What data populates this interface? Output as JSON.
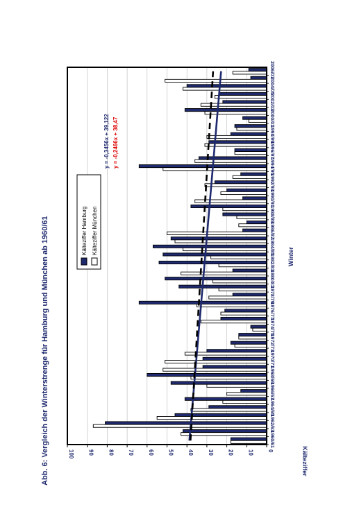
{
  "chart_data": {
    "type": "bar",
    "orientation": "horizontal",
    "title": "Abb. 6: Vergleich der Winterstrenge für Hamburg und München ab 1960/61",
    "xlabel": "Kälteziffer",
    "ylabel": "Winter",
    "xlim": [
      0,
      100
    ],
    "x_ticks": [
      0,
      10,
      20,
      30,
      40,
      50,
      60,
      70,
      80,
      90,
      100
    ],
    "grid": true,
    "legend_position": "upper-center",
    "winters": [
      "1960/61",
      "1961/62",
      "1962/63",
      "1963/64",
      "1964/65",
      "1965/66",
      "1966/67",
      "1967/68",
      "1968/69",
      "1969/70",
      "1970/71",
      "1971/72",
      "1972/73",
      "1973/74",
      "1974/75",
      "1975/76",
      "1976/77",
      "1977/78",
      "1978/79",
      "1979/80",
      "1980/81",
      "1981/82",
      "1982/83",
      "1983/84",
      "1984/85",
      "1985/86",
      "1986/87",
      "1987/88",
      "1988/89",
      "1989/90",
      "1990/91",
      "1991/92",
      "1992/93",
      "1993/94",
      "1994/95",
      "1995/96",
      "1996/97",
      "1997/98",
      "1998/99",
      "1999/00",
      "2000/01",
      "2001/02",
      "2002/03",
      "2003/04",
      "2004/05",
      "2005/06",
      "2006/07"
    ],
    "category_labels": [
      "1960/61",
      "1962/63",
      "1964/65",
      "1966/67",
      "1968/69",
      "1970/71",
      "1972/73",
      "1974/75",
      "1976/77",
      "1978/79",
      "1980/81",
      "1982/83",
      "1984/85",
      "1986/87",
      "1988/89",
      "1990/91",
      "1992/93",
      "1994/95",
      "1996/97",
      "1998/99",
      "2000/01",
      "2002/03",
      "2004/05",
      "2006/07"
    ],
    "series": [
      {
        "name": "Kälteziffer Hamburg",
        "color": "#1f2a6e",
        "values": [
          18,
          42,
          81,
          46,
          29,
          41,
          13,
          48,
          60,
          32,
          32,
          30,
          18,
          14,
          8,
          23,
          21,
          64,
          17,
          44,
          51,
          17,
          54,
          52,
          57,
          48,
          12,
          10,
          22,
          38,
          12,
          20,
          26,
          13,
          64,
          34,
          16,
          29,
          18,
          16,
          12,
          41,
          22,
          24,
          40,
          8,
          9
        ]
      },
      {
        "name": "Kälteziffer München",
        "color": "#ffffff",
        "values": [
          18,
          43,
          87,
          55,
          38,
          22,
          20,
          30,
          38,
          52,
          51,
          41,
          16,
          14,
          7,
          33,
          23,
          35,
          29,
          24,
          27,
          43,
          24,
          28,
          42,
          46,
          50,
          14,
          15,
          22,
          36,
          23,
          31,
          17,
          52,
          36,
          16,
          31,
          30,
          15,
          9,
          31,
          33,
          26,
          42,
          51,
          17
        ]
      }
    ],
    "trendlines": [
      {
        "series": "Kälteziffer Hamburg",
        "equation": "y = -0,3456x + 39,122",
        "slope": -0.3456,
        "intercept": 39.122,
        "style": "solid",
        "color": "#1f2a6e",
        "label_color": "#1f2a6e"
      },
      {
        "series": "Kälteziffer München",
        "equation": "y = -0,2466x + 38,47",
        "slope": -0.2466,
        "intercept": 38.47,
        "style": "dashed",
        "color": "#000000",
        "label_color": "#dd0000"
      }
    ]
  }
}
